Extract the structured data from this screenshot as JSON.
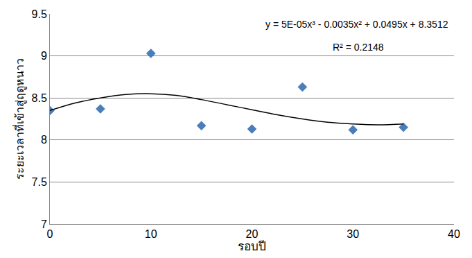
{
  "chart_data": {
    "type": "scatter",
    "x_label": "รอบปี",
    "y_label": "ระยะเวลาที่เข้าสู่ฤดูหนาว",
    "annotations": [
      "y = 5E-05x³ - 0.0035x² + 0.0495x + 8.3512",
      "R² = 0.2148"
    ],
    "series": [
      {
        "type": "scatter",
        "marker": "diamond",
        "color": "#4a7ebb",
        "x": [
          0,
          5,
          10,
          15,
          20,
          25,
          30,
          35
        ],
        "values": [
          8.35,
          8.37,
          9.03,
          8.17,
          8.13,
          8.63,
          8.12,
          8.15
        ]
      },
      {
        "type": "line",
        "line_style": "solid",
        "color": "#000000",
        "x": [
          0,
          2.5,
          5,
          7.5,
          10,
          12.5,
          15,
          17.5,
          20,
          22.5,
          25,
          27.5,
          30,
          32.5,
          35
        ],
        "values": [
          8.35,
          8.44,
          8.5,
          8.54,
          8.55,
          8.53,
          8.48,
          8.42,
          8.36,
          8.3,
          8.25,
          8.21,
          8.19,
          8.18,
          8.19
        ]
      }
    ],
    "xlim": [
      0,
      40
    ],
    "xticks": [
      0,
      10,
      20,
      30,
      40
    ],
    "ylim": [
      7,
      9.5
    ],
    "yticks": [
      7,
      7.5,
      8,
      8.5,
      9,
      9.5
    ],
    "grid": true
  }
}
